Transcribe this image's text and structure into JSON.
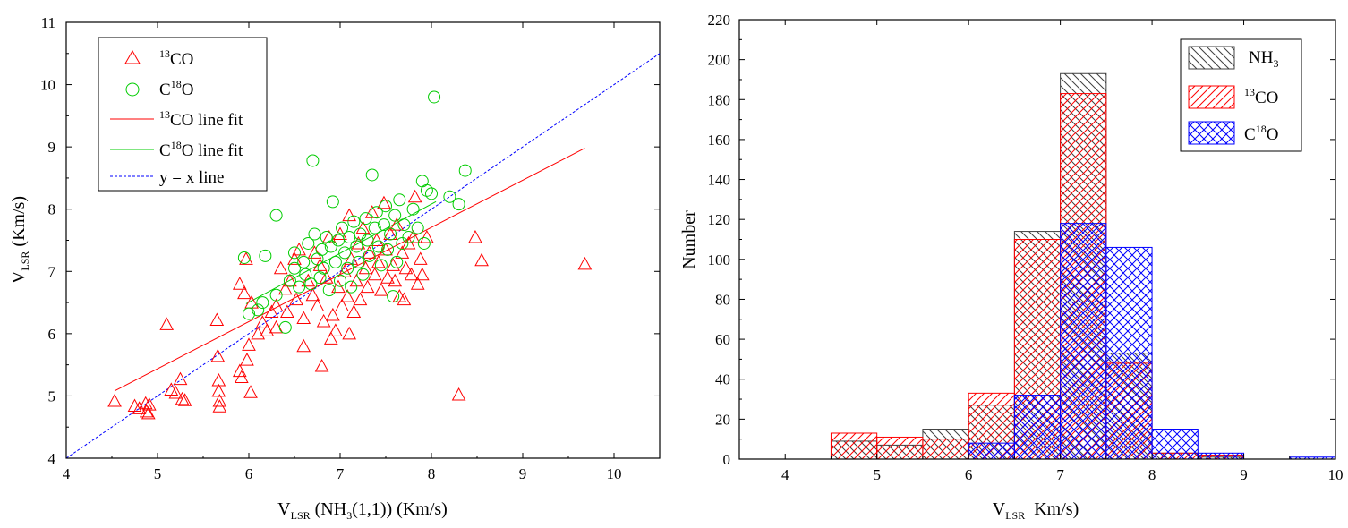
{
  "chart_data": [
    {
      "type": "scatter",
      "title": "",
      "xlabel": "V",
      "xlabel_sub": "LSR",
      "xlabel_rest_1": " (NH",
      "xlabel_rest_sub": "3",
      "xlabel_rest_2": "(1,1))  (Km/s)",
      "ylabel": "V",
      "ylabel_sub": "LSR",
      "ylabel_rest": " (Km/s)",
      "xlim": [
        4,
        10.5
      ],
      "ylim": [
        4,
        11
      ],
      "xticks": [
        "4",
        "5",
        "6",
        "7",
        "8",
        "9",
        "10"
      ],
      "yticks": [
        "4",
        "5",
        "6",
        "7",
        "8",
        "9",
        "10",
        "11"
      ],
      "legend": [
        {
          "sup": "13",
          "text": "CO",
          "color": "#ff0000",
          "kind": "triangle"
        },
        {
          "pre": "C",
          "sup": "18",
          "text": "O",
          "color": "#00cc00",
          "kind": "circle"
        },
        {
          "sup": "13",
          "text": "CO line fit",
          "color": "#ff0000",
          "kind": "line"
        },
        {
          "pre": "C",
          "sup": "18",
          "text": "O line fit",
          "color": "#00cc00",
          "kind": "line"
        },
        {
          "text": "y = x line",
          "color": "#0000ff",
          "kind": "dashed"
        }
      ],
      "fits": {
        "co13": {
          "x": [
            4.53,
            9.68
          ],
          "y": [
            5.08,
            8.98
          ],
          "color": "#ff0000"
        },
        "c18o": {
          "x": [
            5.97,
            8.05
          ],
          "y": [
            6.48,
            8.12
          ],
          "color": "#00cc00"
        },
        "yx": {
          "x": [
            4,
            10.5
          ],
          "y": [
            4,
            10.5
          ],
          "color": "#0000ff"
        }
      },
      "series": [
        {
          "name": "13CO",
          "color": "#ff0000",
          "points": [
            [
              4.53,
              4.92
            ],
            [
              4.75,
              4.84
            ],
            [
              4.8,
              4.8
            ],
            [
              4.87,
              4.88
            ],
            [
              4.88,
              4.75
            ],
            [
              4.9,
              4.72
            ],
            [
              4.91,
              4.86
            ],
            [
              5.1,
              6.15
            ],
            [
              5.15,
              5.1
            ],
            [
              5.2,
              5.05
            ],
            [
              5.25,
              5.27
            ],
            [
              5.27,
              4.95
            ],
            [
              5.3,
              4.93
            ],
            [
              5.65,
              6.22
            ],
            [
              5.66,
              5.64
            ],
            [
              5.67,
              5.25
            ],
            [
              5.67,
              5.08
            ],
            [
              5.68,
              4.92
            ],
            [
              5.68,
              4.83
            ],
            [
              5.9,
              6.8
            ],
            [
              5.9,
              5.4
            ],
            [
              5.92,
              5.3
            ],
            [
              5.95,
              6.65
            ],
            [
              5.97,
              7.2
            ],
            [
              5.98,
              5.58
            ],
            [
              6.0,
              5.82
            ],
            [
              6.02,
              5.06
            ],
            [
              6.03,
              6.5
            ],
            [
              6.1,
              6.0
            ],
            [
              6.15,
              6.18
            ],
            [
              6.2,
              6.05
            ],
            [
              6.25,
              6.35
            ],
            [
              6.3,
              6.45
            ],
            [
              6.3,
              6.1
            ],
            [
              6.35,
              7.05
            ],
            [
              6.4,
              6.72
            ],
            [
              6.42,
              6.35
            ],
            [
              6.45,
              6.85
            ],
            [
              6.5,
              7.2
            ],
            [
              6.52,
              6.55
            ],
            [
              6.55,
              7.35
            ],
            [
              6.6,
              6.25
            ],
            [
              6.6,
              5.8
            ],
            [
              6.65,
              6.85
            ],
            [
              6.7,
              6.62
            ],
            [
              6.72,
              7.3
            ],
            [
              6.75,
              6.45
            ],
            [
              6.78,
              7.1
            ],
            [
              6.8,
              5.48
            ],
            [
              6.82,
              6.2
            ],
            [
              6.85,
              6.9
            ],
            [
              6.88,
              7.55
            ],
            [
              6.9,
              5.92
            ],
            [
              6.92,
              6.3
            ],
            [
              6.95,
              6.05
            ],
            [
              6.98,
              6.75
            ],
            [
              7.0,
              7.6
            ],
            [
              7.02,
              6.45
            ],
            [
              7.05,
              7.0
            ],
            [
              7.08,
              6.6
            ],
            [
              7.1,
              7.9
            ],
            [
              7.1,
              6.0
            ],
            [
              7.12,
              7.2
            ],
            [
              7.15,
              6.35
            ],
            [
              7.18,
              6.85
            ],
            [
              7.2,
              7.45
            ],
            [
              7.22,
              6.55
            ],
            [
              7.25,
              7.7
            ],
            [
              7.28,
              7.05
            ],
            [
              7.3,
              6.75
            ],
            [
              7.32,
              7.3
            ],
            [
              7.35,
              7.95
            ],
            [
              7.38,
              6.95
            ],
            [
              7.4,
              7.5
            ],
            [
              7.42,
              7.15
            ],
            [
              7.45,
              6.7
            ],
            [
              7.48,
              8.1
            ],
            [
              7.5,
              7.35
            ],
            [
              7.52,
              6.9
            ],
            [
              7.55,
              7.6
            ],
            [
              7.58,
              7.1
            ],
            [
              7.6,
              6.85
            ],
            [
              7.62,
              7.75
            ],
            [
              7.65,
              6.6
            ],
            [
              7.68,
              7.3
            ],
            [
              7.7,
              6.55
            ],
            [
              7.72,
              7.05
            ],
            [
              7.75,
              7.45
            ],
            [
              7.78,
              6.95
            ],
            [
              7.8,
              7.55
            ],
            [
              7.82,
              8.2
            ],
            [
              7.85,
              6.8
            ],
            [
              7.88,
              7.2
            ],
            [
              7.9,
              6.95
            ],
            [
              7.95,
              7.55
            ],
            [
              8.3,
              5.02
            ],
            [
              8.48,
              7.55
            ],
            [
              8.55,
              7.18
            ],
            [
              9.68,
              7.12
            ]
          ]
        },
        {
          "name": "C18O",
          "color": "#00cc00",
          "points": [
            [
              5.95,
              7.22
            ],
            [
              6.0,
              6.32
            ],
            [
              6.1,
              6.38
            ],
            [
              6.15,
              6.5
            ],
            [
              6.18,
              7.25
            ],
            [
              6.3,
              7.9
            ],
            [
              6.3,
              6.62
            ],
            [
              6.4,
              6.1
            ],
            [
              6.45,
              6.85
            ],
            [
              6.5,
              7.05
            ],
            [
              6.5,
              7.3
            ],
            [
              6.55,
              6.75
            ],
            [
              6.6,
              7.15
            ],
            [
              6.62,
              6.95
            ],
            [
              6.65,
              7.45
            ],
            [
              6.68,
              6.8
            ],
            [
              6.7,
              8.78
            ],
            [
              6.72,
              7.6
            ],
            [
              6.75,
              7.2
            ],
            [
              6.78,
              6.9
            ],
            [
              6.8,
              7.35
            ],
            [
              6.82,
              7.05
            ],
            [
              6.85,
              7.55
            ],
            [
              6.88,
              6.7
            ],
            [
              6.9,
              7.4
            ],
            [
              6.92,
              8.12
            ],
            [
              6.95,
              7.15
            ],
            [
              6.98,
              7.5
            ],
            [
              7.0,
              6.85
            ],
            [
              7.02,
              7.7
            ],
            [
              7.05,
              7.3
            ],
            [
              7.08,
              7.05
            ],
            [
              7.1,
              7.55
            ],
            [
              7.12,
              6.75
            ],
            [
              7.15,
              7.8
            ],
            [
              7.18,
              7.4
            ],
            [
              7.2,
              7.15
            ],
            [
              7.22,
              7.6
            ],
            [
              7.25,
              6.95
            ],
            [
              7.28,
              7.85
            ],
            [
              7.3,
              7.5
            ],
            [
              7.32,
              7.25
            ],
            [
              7.35,
              8.55
            ],
            [
              7.38,
              7.7
            ],
            [
              7.4,
              7.95
            ],
            [
              7.42,
              7.4
            ],
            [
              7.45,
              7.1
            ],
            [
              7.48,
              7.75
            ],
            [
              7.5,
              8.05
            ],
            [
              7.52,
              7.35
            ],
            [
              7.55,
              7.6
            ],
            [
              7.58,
              6.6
            ],
            [
              7.6,
              7.9
            ],
            [
              7.62,
              7.15
            ],
            [
              7.65,
              8.15
            ],
            [
              7.68,
              7.45
            ],
            [
              7.7,
              7.75
            ],
            [
              7.75,
              7.55
            ],
            [
              7.8,
              8.0
            ],
            [
              7.85,
              7.7
            ],
            [
              7.9,
              8.45
            ],
            [
              7.92,
              7.45
            ],
            [
              7.95,
              8.3
            ],
            [
              8.0,
              8.25
            ],
            [
              8.03,
              9.8
            ],
            [
              8.2,
              8.2
            ],
            [
              8.3,
              8.08
            ],
            [
              8.37,
              8.62
            ]
          ]
        }
      ]
    },
    {
      "type": "bar",
      "title": "",
      "xlabel": "V",
      "xlabel_sub": "LSR",
      "xlabel_rest": "  Km/s)",
      "ylabel": "Number",
      "xlim": [
        3.5,
        10
      ],
      "ylim": [
        0,
        220
      ],
      "xticks": [
        "4",
        "5",
        "6",
        "7",
        "8",
        "9",
        "10"
      ],
      "yticks": [
        "0",
        "20",
        "40",
        "60",
        "80",
        "100",
        "120",
        "140",
        "160",
        "180",
        "200",
        "220"
      ],
      "bin_width": 0.5,
      "legend": [
        {
          "text": "NH",
          "sub": "3",
          "color": "#404040",
          "pattern": "nh3"
        },
        {
          "sup": "13",
          "text": "CO",
          "color": "#ff0000",
          "pattern": "co"
        },
        {
          "pre": "C",
          "sup": "18",
          "text": "O",
          "color": "#0000ff",
          "pattern": "c18o"
        }
      ],
      "series": [
        {
          "name": "NH3",
          "color": "#404040",
          "bins": [
            4.5,
            5.0,
            5.5,
            6.0,
            6.5,
            7.0,
            7.5,
            8.0,
            8.5
          ],
          "values": [
            9,
            7,
            15,
            27,
            114,
            193,
            53,
            3,
            1
          ]
        },
        {
          "name": "13CO",
          "color": "#ff0000",
          "bins": [
            4.5,
            5.0,
            5.5,
            6.0,
            6.5,
            7.0,
            7.5,
            8.0,
            8.5
          ],
          "values": [
            13,
            11,
            10,
            33,
            110,
            183,
            48,
            3,
            2
          ]
        },
        {
          "name": "C18O",
          "color": "#0000ff",
          "bins": [
            6.0,
            6.5,
            7.0,
            7.5,
            8.0,
            8.5,
            9.5
          ],
          "values": [
            8,
            32,
            118,
            106,
            15,
            3,
            1
          ]
        }
      ]
    }
  ]
}
